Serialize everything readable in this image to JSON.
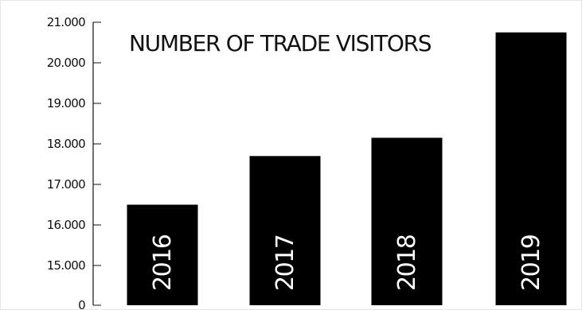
{
  "chart_data": {
    "type": "bar",
    "title": "NUMBER OF TRADE VISITORS",
    "categories": [
      "2016",
      "2017",
      "2018",
      "2019"
    ],
    "values": [
      16500,
      17700,
      18150,
      20750
    ],
    "y_ticks": [
      {
        "value": 0,
        "label": "0"
      },
      {
        "value": 15000,
        "label": "15.000"
      },
      {
        "value": 16000,
        "label": "16.000"
      },
      {
        "value": 17000,
        "label": "17.000"
      },
      {
        "value": 18000,
        "label": "18.000"
      },
      {
        "value": 19000,
        "label": "19.000"
      },
      {
        "value": 20000,
        "label": "20.000"
      },
      {
        "value": 21000,
        "label": "21.000"
      }
    ],
    "ylim": [
      0,
      21000
    ],
    "axis_break": [
      0,
      15000
    ],
    "grid": false,
    "legend": "none",
    "colors": {
      "bars": "#000000",
      "bar_labels": "#ffffff",
      "axis": "#111111"
    }
  }
}
